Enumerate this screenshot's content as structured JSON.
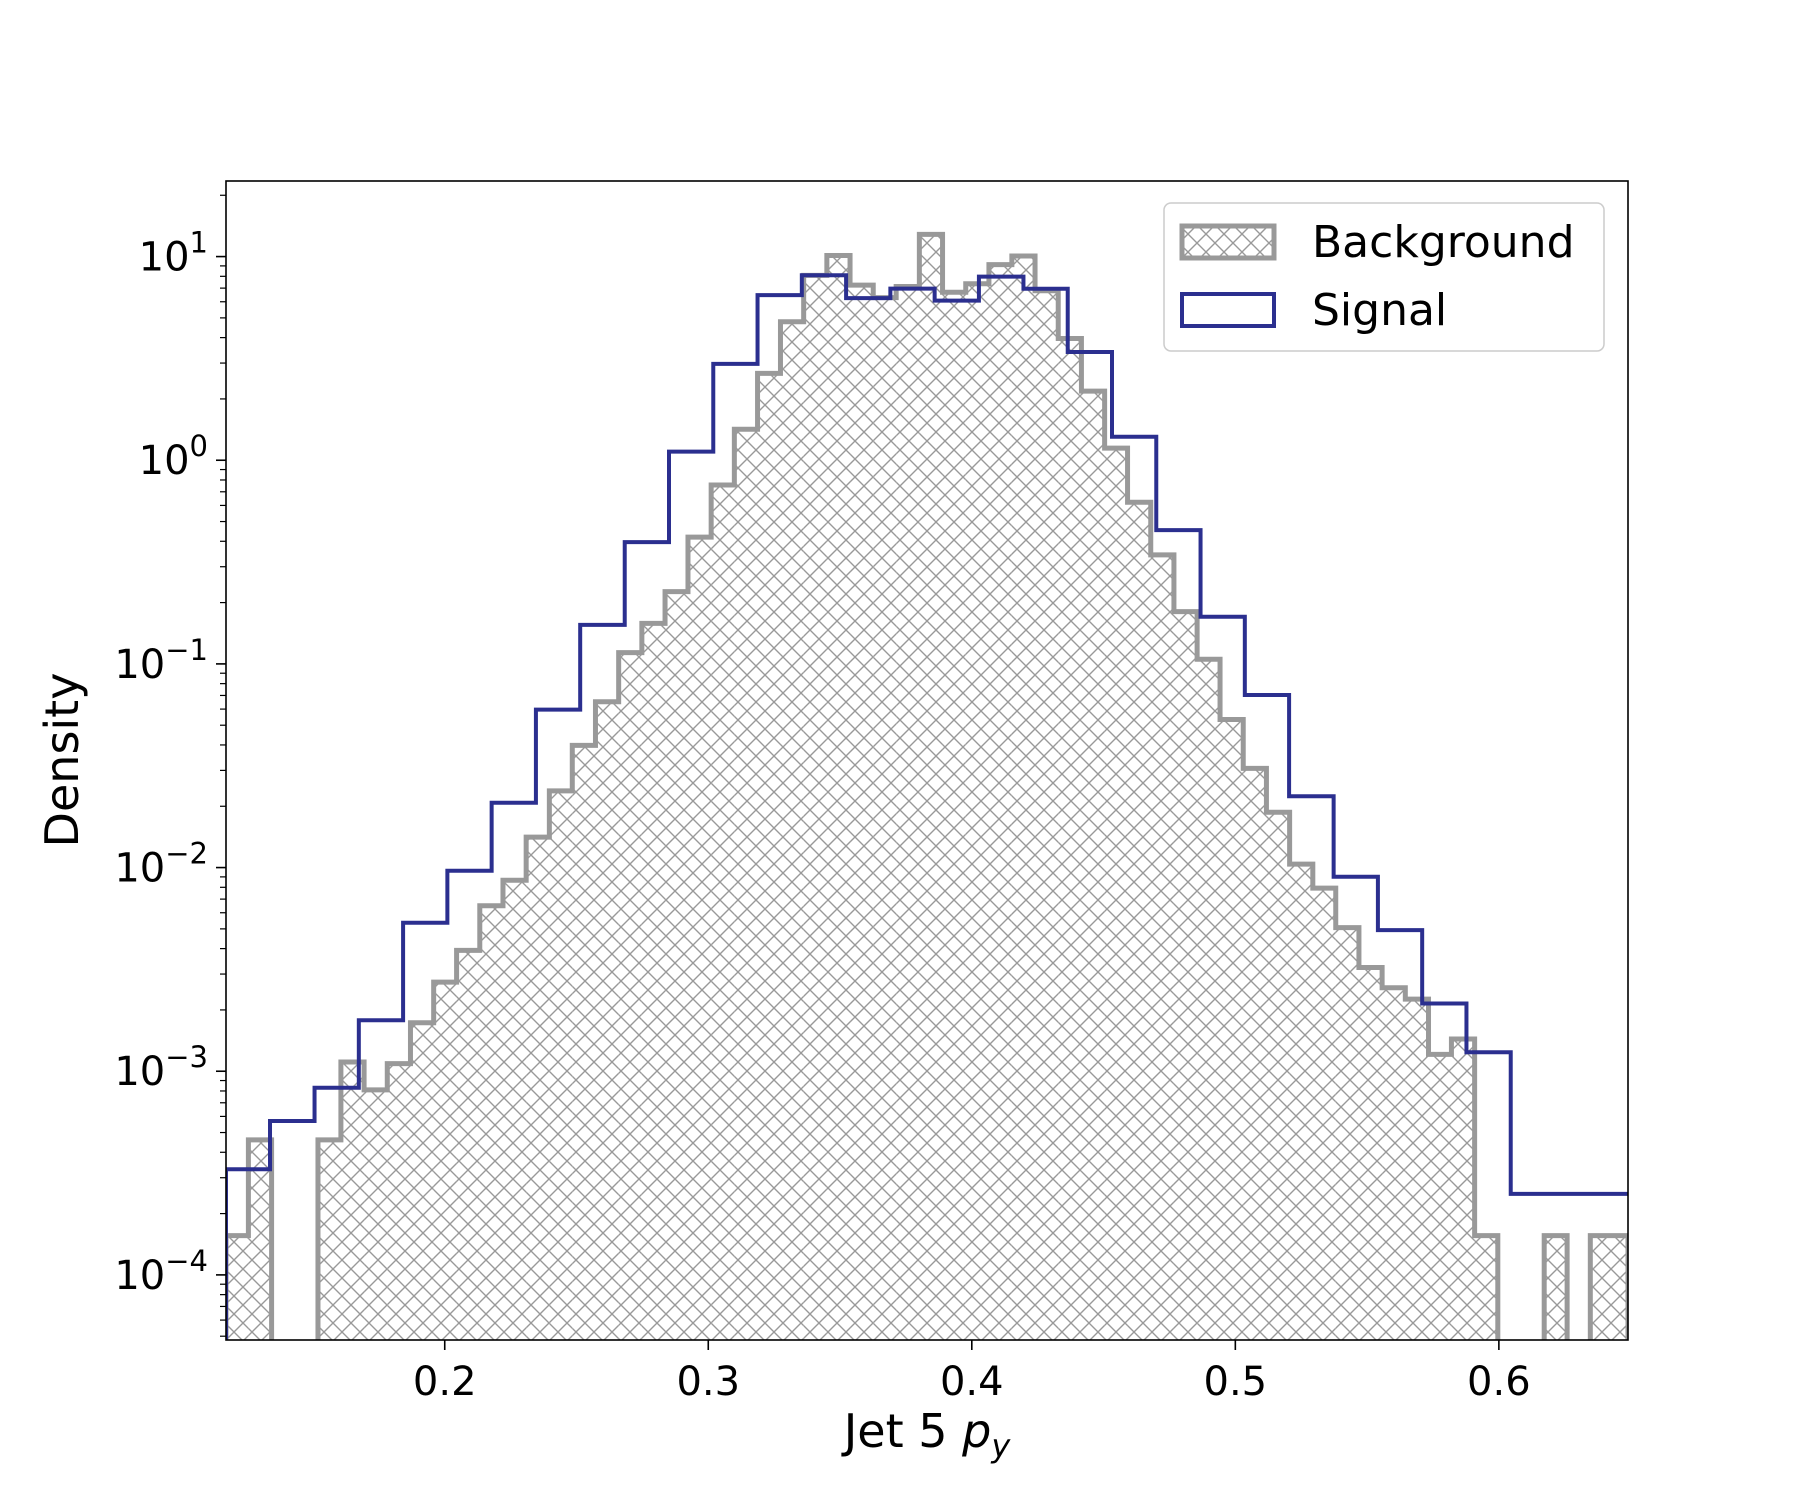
{
  "chart_data": {
    "type": "histogram",
    "xlabel_text": "Jet 5 ",
    "xlabel_symbol": "p",
    "xlabel_sub": "y",
    "ylabel": "Density",
    "xlim": [
      0.117,
      0.649
    ],
    "ylim": [
      4.79e-05,
      23.5
    ],
    "yscale": "log",
    "x_ticks": [
      0.2,
      0.3,
      0.4,
      0.5,
      0.6
    ],
    "x_tick_labels": [
      "0.2",
      "0.3",
      "0.4",
      "0.5",
      "0.6"
    ],
    "y_ticks": [
      0.0001,
      0.001,
      0.01,
      0.1,
      1,
      10
    ],
    "y_tick_labels": [
      {
        "base": "10",
        "exp": "−4"
      },
      {
        "base": "10",
        "exp": "−3"
      },
      {
        "base": "10",
        "exp": "−2"
      },
      {
        "base": "10",
        "exp": "−1"
      },
      {
        "base": "10",
        "exp": "0"
      },
      {
        "base": "10",
        "exp": "1"
      }
    ],
    "legend_position": "top-right",
    "series": [
      {
        "name": "Background",
        "style": "hatched-step",
        "color": "#999999",
        "edges": [
          0.117,
          0.1255,
          0.1343,
          0.1431,
          0.1519,
          0.1606,
          0.1694,
          0.1782,
          0.187,
          0.1958,
          0.2045,
          0.2133,
          0.2221,
          0.2309,
          0.2397,
          0.2484,
          0.2572,
          0.266,
          0.2748,
          0.2836,
          0.2923,
          0.3011,
          0.3099,
          0.3187,
          0.3274,
          0.3362,
          0.345,
          0.3538,
          0.3626,
          0.3713,
          0.3801,
          0.3889,
          0.3977,
          0.4065,
          0.4152,
          0.424,
          0.4328,
          0.4416,
          0.4504,
          0.4591,
          0.4679,
          0.4767,
          0.4855,
          0.4942,
          0.503,
          0.5118,
          0.5206,
          0.5294,
          0.5381,
          0.5469,
          0.5557,
          0.5645,
          0.5733,
          0.582,
          0.5908,
          0.5996,
          0.6084,
          0.6172,
          0.6259,
          0.6347,
          0.649
        ],
        "values": [
          0.000156,
          0.00046,
          0,
          0,
          0.00046,
          0.00111,
          0.00081,
          0.00109,
          0.00173,
          0.00274,
          0.00392,
          0.00649,
          0.00866,
          0.0141,
          0.0238,
          0.0398,
          0.0652,
          0.1136,
          0.1582,
          0.2264,
          0.4191,
          0.7556,
          1.419,
          2.669,
          4.788,
          8.081,
          10.12,
          7.239,
          6.288,
          7.132,
          12.86,
          6.682,
          7.355,
          9.128,
          10.07,
          6.798,
          3.963,
          2.185,
          1.146,
          0.6218,
          0.3429,
          0.1806,
          0.1054,
          0.0533,
          0.0307,
          0.0187,
          0.0104,
          0.00793,
          0.00507,
          0.00323,
          0.00257,
          0.00226,
          0.00121,
          0.00144,
          0.000156,
          0,
          0,
          0.000156,
          0,
          0.000156
        ]
      },
      {
        "name": "Signal",
        "style": "step",
        "color": "#2b2f8f",
        "edges": [
          0.117,
          0.1337,
          0.1506,
          0.1674,
          0.1842,
          0.201,
          0.2178,
          0.2346,
          0.2514,
          0.2683,
          0.2851,
          0.3019,
          0.3187,
          0.3355,
          0.3523,
          0.3691,
          0.3859,
          0.4027,
          0.4196,
          0.4364,
          0.4532,
          0.47,
          0.4868,
          0.5036,
          0.5204,
          0.5373,
          0.5541,
          0.5709,
          0.5877,
          0.6045,
          0.649
        ],
        "values": [
          0.00033,
          0.00057,
          0.00083,
          0.00178,
          0.00536,
          0.00964,
          0.0208,
          0.0596,
          0.1554,
          0.3961,
          1.102,
          2.974,
          6.464,
          8.093,
          6.248,
          6.963,
          6.079,
          7.972,
          6.953,
          3.401,
          1.304,
          0.4541,
          0.1705,
          0.0704,
          0.0224,
          0.00901,
          0.00493,
          0.00215,
          0.00124,
          0.00025
        ]
      }
    ]
  }
}
